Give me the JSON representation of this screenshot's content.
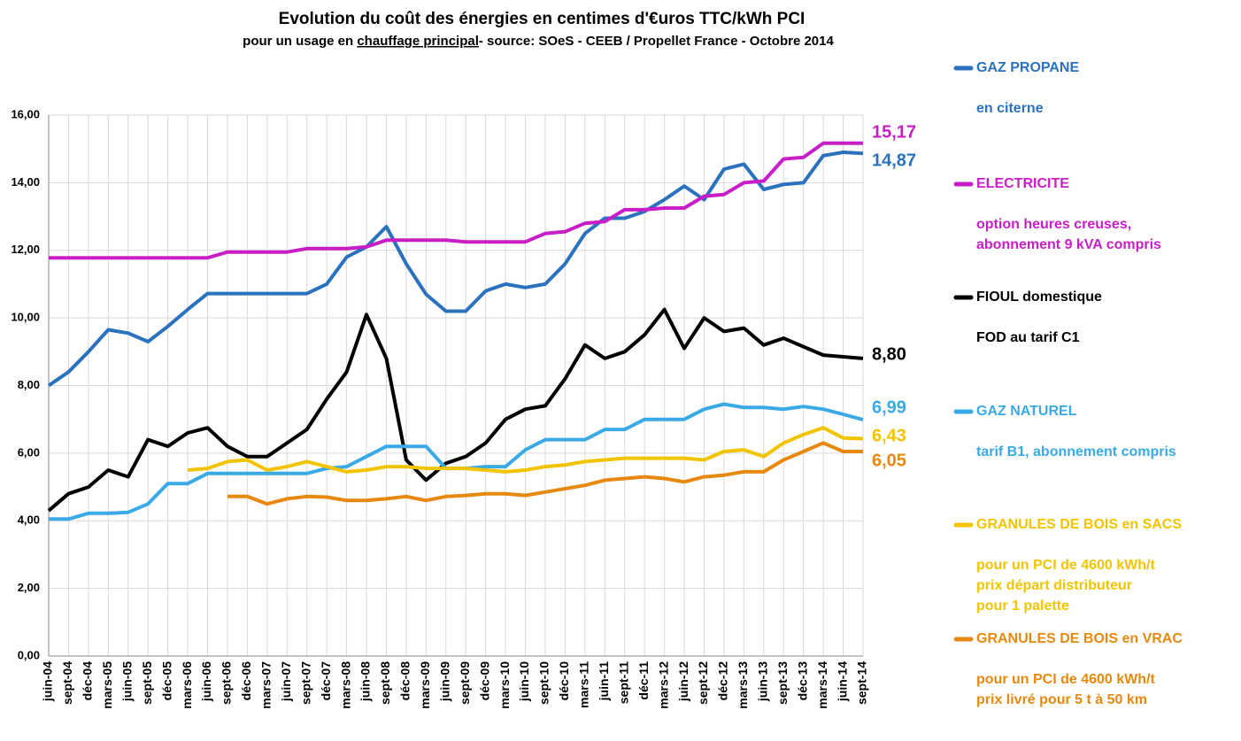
{
  "chart_data": {
    "type": "line",
    "title": "Evolution du coût des énergies en centimes d'€uros TTC/kWh PCI",
    "subtitle": [
      "pour un usage en ",
      "chauffage principal",
      "- source: SOeS - CEEB / Propellet France - Octobre 2014"
    ],
    "categories": [
      "juin-04",
      "sept-04",
      "déc-04",
      "mars-05",
      "juin-05",
      "sept-05",
      "déc-05",
      "mars-06",
      "juin-06",
      "sept-06",
      "déc-06",
      "mars-07",
      "juin-07",
      "sept-07",
      "déc-07",
      "mars-08",
      "juin-08",
      "sept-08",
      "déc-08",
      "mars-09",
      "juin-09",
      "sept-09",
      "déc-09",
      "mars-10",
      "juin-10",
      "sept-10",
      "déc-10",
      "mars-11",
      "juin-11",
      "sept-11",
      "déc-11",
      "mars-12",
      "juin-12",
      "sept-12",
      "déc-12",
      "mars-13",
      "juin-13",
      "sept-13",
      "déc-13",
      "mars-14",
      "juin-14",
      "sept-14"
    ],
    "ylim": [
      0,
      16
    ],
    "yticks": [
      {
        "value": 0,
        "label": "0,00"
      },
      {
        "value": 2,
        "label": "2,00"
      },
      {
        "value": 4,
        "label": "4,00"
      },
      {
        "value": 6,
        "label": "6,00"
      },
      {
        "value": 8,
        "label": "8,00"
      },
      {
        "value": 10,
        "label": "10,00"
      },
      {
        "value": 12,
        "label": "12,00"
      },
      {
        "value": 14,
        "label": "14,00"
      },
      {
        "value": 16,
        "label": "16,00"
      }
    ],
    "grid": true,
    "legend": "right",
    "series": [
      {
        "name": "GAZ PROPANE",
        "notes": [
          "en citerne"
        ],
        "color": "#2a72bd",
        "values": [
          8.0,
          8.4,
          9.0,
          9.65,
          9.55,
          9.3,
          9.75,
          10.25,
          10.72,
          10.72,
          10.72,
          10.72,
          10.72,
          10.72,
          11.0,
          11.8,
          12.1,
          12.7,
          11.6,
          10.7,
          10.2,
          10.2,
          10.8,
          11.0,
          10.9,
          11.0,
          11.6,
          12.5,
          12.95,
          12.95,
          13.15,
          13.5,
          13.9,
          13.5,
          14.4,
          14.55,
          13.8,
          13.95,
          14.0,
          14.8,
          14.9,
          14.87
        ],
        "value_labels": [
          null,
          null,
          null,
          null,
          null,
          null,
          null,
          null,
          null,
          null,
          null,
          null,
          null,
          null,
          null,
          null,
          null,
          null,
          null,
          null,
          null,
          null,
          null,
          null,
          null,
          null,
          null,
          null,
          null,
          null,
          null,
          null,
          null,
          null,
          null,
          null,
          null,
          null,
          null,
          null,
          null,
          "14,87"
        ]
      },
      {
        "name": "ELECTRICITE",
        "notes": [
          "option heures creuses,",
          "abonnement 9 kVA compris"
        ],
        "color": "#c81ec8",
        "values": [
          11.78,
          11.78,
          11.78,
          11.78,
          11.78,
          11.78,
          11.78,
          11.78,
          11.78,
          11.95,
          11.95,
          11.95,
          11.95,
          12.05,
          12.05,
          12.05,
          12.1,
          12.3,
          12.3,
          12.3,
          12.3,
          12.25,
          12.25,
          12.25,
          12.25,
          12.5,
          12.55,
          12.8,
          12.85,
          13.2,
          13.2,
          13.25,
          13.25,
          13.6,
          13.65,
          14.0,
          14.05,
          14.7,
          14.75,
          15.17,
          15.17,
          15.17
        ],
        "value_labels": [
          null,
          null,
          null,
          null,
          null,
          null,
          null,
          null,
          null,
          null,
          null,
          null,
          null,
          null,
          null,
          null,
          null,
          null,
          null,
          null,
          null,
          null,
          null,
          null,
          null,
          null,
          null,
          null,
          null,
          null,
          null,
          null,
          null,
          null,
          null,
          null,
          null,
          null,
          null,
          null,
          null,
          "15,17"
        ]
      },
      {
        "name": "FIOUL domestique",
        "notes": [
          "FOD au tarif C1"
        ],
        "color": "#000000",
        "values": [
          4.3,
          4.8,
          5.0,
          5.5,
          5.3,
          6.4,
          6.2,
          6.6,
          6.75,
          6.2,
          5.9,
          5.9,
          6.3,
          6.7,
          7.6,
          8.4,
          10.1,
          8.8,
          5.8,
          5.2,
          5.7,
          5.9,
          6.3,
          7.0,
          7.3,
          7.4,
          8.2,
          9.2,
          8.8,
          9.0,
          9.5,
          10.25,
          9.1,
          10.0,
          9.6,
          9.7,
          9.2,
          9.4,
          9.15,
          8.9,
          8.85,
          8.8
        ],
        "value_labels": [
          null,
          null,
          null,
          null,
          null,
          null,
          null,
          null,
          null,
          null,
          null,
          null,
          null,
          null,
          null,
          null,
          null,
          null,
          null,
          null,
          null,
          null,
          null,
          null,
          null,
          null,
          null,
          null,
          null,
          null,
          null,
          null,
          null,
          null,
          null,
          null,
          null,
          null,
          null,
          null,
          null,
          "8,80"
        ]
      },
      {
        "name": "GAZ NATUREL",
        "notes": [
          "tarif B1, abonnement compris"
        ],
        "color": "#3aaae6",
        "values": [
          4.05,
          4.05,
          4.22,
          4.22,
          4.25,
          4.5,
          5.1,
          5.1,
          5.4,
          5.4,
          5.4,
          5.4,
          5.4,
          5.4,
          5.55,
          5.6,
          5.9,
          6.2,
          6.2,
          6.2,
          5.55,
          5.55,
          5.6,
          5.6,
          6.1,
          6.4,
          6.4,
          6.4,
          6.7,
          6.7,
          7.0,
          7.0,
          7.0,
          7.3,
          7.45,
          7.35,
          7.35,
          7.3,
          7.38,
          7.3,
          7.15,
          6.99
        ],
        "value_labels": [
          null,
          null,
          null,
          null,
          null,
          null,
          null,
          null,
          null,
          null,
          null,
          null,
          null,
          null,
          null,
          null,
          null,
          null,
          null,
          null,
          null,
          null,
          null,
          null,
          null,
          null,
          null,
          null,
          null,
          null,
          null,
          null,
          null,
          null,
          null,
          null,
          null,
          null,
          null,
          null,
          null,
          "6,99"
        ]
      },
      {
        "name": "GRANULES DE BOIS en SACS",
        "notes": [
          "pour un PCI de 4600 kWh/t",
          "prix départ distributeur",
          "pour 1 palette"
        ],
        "color": "#f2c400",
        "values": [
          null,
          null,
          null,
          null,
          null,
          null,
          null,
          5.5,
          5.55,
          5.75,
          5.8,
          5.5,
          5.6,
          5.75,
          5.6,
          5.45,
          5.5,
          5.6,
          5.6,
          5.55,
          5.55,
          5.55,
          5.5,
          5.45,
          5.5,
          5.6,
          5.65,
          5.75,
          5.8,
          5.85,
          5.85,
          5.85,
          5.85,
          5.8,
          6.05,
          6.1,
          5.9,
          6.3,
          6.55,
          6.75,
          6.45,
          6.43
        ],
        "value_labels": [
          null,
          null,
          null,
          null,
          null,
          null,
          null,
          null,
          null,
          null,
          null,
          null,
          null,
          null,
          null,
          null,
          null,
          null,
          null,
          null,
          null,
          null,
          null,
          null,
          null,
          null,
          null,
          null,
          null,
          null,
          null,
          null,
          null,
          null,
          null,
          null,
          null,
          null,
          null,
          null,
          null,
          "6,43"
        ]
      },
      {
        "name": "GRANULES DE BOIS en VRAC",
        "notes": [
          "pour un PCI de 4600 kWh/t",
          "prix livré pour 5 t à 50 km"
        ],
        "color": "#e8890f",
        "values": [
          null,
          null,
          null,
          null,
          null,
          null,
          null,
          null,
          null,
          4.72,
          4.72,
          4.5,
          4.65,
          4.72,
          4.7,
          4.6,
          4.6,
          4.65,
          4.72,
          4.6,
          4.72,
          4.75,
          4.8,
          4.8,
          4.75,
          4.85,
          4.95,
          5.05,
          5.2,
          5.25,
          5.3,
          5.25,
          5.15,
          5.3,
          5.35,
          5.45,
          5.45,
          5.8,
          6.05,
          6.3,
          6.05,
          6.05
        ],
        "value_labels": [
          null,
          null,
          null,
          null,
          null,
          null,
          null,
          null,
          null,
          null,
          null,
          null,
          null,
          null,
          null,
          null,
          null,
          null,
          null,
          null,
          null,
          null,
          null,
          null,
          null,
          null,
          null,
          null,
          null,
          null,
          null,
          null,
          null,
          null,
          null,
          null,
          null,
          null,
          null,
          null,
          null,
          "6,05"
        ]
      }
    ]
  }
}
